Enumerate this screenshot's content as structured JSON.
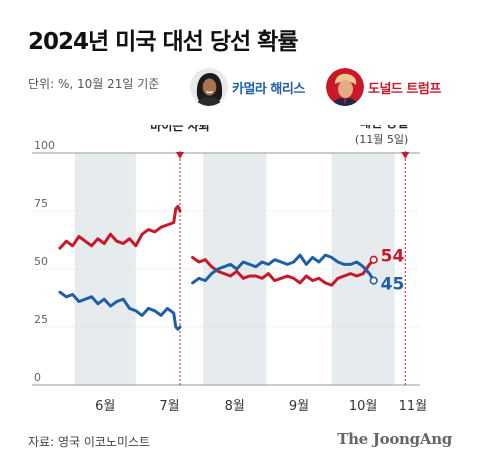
{
  "header": {
    "title": "2024년 미국 대선 당선 확률",
    "unit": "단위: %, 10월 21일 기준"
  },
  "legend": {
    "harris": {
      "label": "카멀라 해리스",
      "color": "#1f5fa8",
      "icon": "harris-portrait-icon"
    },
    "trump": {
      "label": "도널드 트럼프",
      "color": "#c8182a",
      "icon": "trump-portrait-icon"
    }
  },
  "footer": {
    "source": "자료: 영국 이코노미스트",
    "brand": "The JoongAng"
  },
  "colors": {
    "shade": "#e6ebee",
    "grid": "#cfcfcf",
    "event": "#c8182a"
  },
  "chart_data": {
    "type": "line",
    "title": "2024년 미국 대선 당선 확률",
    "ylim": [
      0,
      100
    ],
    "yticks": [
      0,
      25,
      50,
      75,
      100
    ],
    "month_labels": [
      "6월",
      "7월",
      "8월",
      "9월",
      "10월",
      "11월"
    ],
    "shaded_months": [
      "6월",
      "8월",
      "10월"
    ],
    "grid": false,
    "x_domain": [
      "2024-05-25",
      "2024-11-12"
    ],
    "annotations": [
      {
        "date": "2024-07-21",
        "label": "바이든 사퇴",
        "sublabel": ""
      },
      {
        "date": "2024-11-05",
        "label": "대선 당일",
        "sublabel": "(11월 5일)"
      }
    ],
    "end_labels": {
      "trump": "54",
      "harris": "45"
    },
    "series": [
      {
        "name": "도널드 트럼프",
        "key": "trump",
        "segments": [
          {
            "x": [
              "2024-05-25",
              "2024-05-28",
              "2024-05-31",
              "2024-06-03",
              "2024-06-06",
              "2024-06-09",
              "2024-06-12",
              "2024-06-15",
              "2024-06-18",
              "2024-06-21",
              "2024-06-24",
              "2024-06-27",
              "2024-06-30",
              "2024-07-03",
              "2024-07-06",
              "2024-07-09",
              "2024-07-12",
              "2024-07-15",
              "2024-07-18",
              "2024-07-19",
              "2024-07-20",
              "2024-07-21"
            ],
            "y": [
              59,
              62,
              60,
              64,
              62,
              60,
              63,
              61,
              65,
              62,
              61,
              63,
              60,
              65,
              67,
              66,
              68,
              69,
              70,
              76,
              77,
              75
            ]
          },
          {
            "x": [
              "2024-07-27",
              "2024-07-30",
              "2024-08-02",
              "2024-08-05",
              "2024-08-08",
              "2024-08-11",
              "2024-08-14",
              "2024-08-17",
              "2024-08-20",
              "2024-08-23",
              "2024-08-26",
              "2024-08-29",
              "2024-09-01",
              "2024-09-04",
              "2024-09-07",
              "2024-09-10",
              "2024-09-13",
              "2024-09-16",
              "2024-09-19",
              "2024-09-22",
              "2024-09-25",
              "2024-09-28",
              "2024-10-01",
              "2024-10-04",
              "2024-10-07",
              "2024-10-10",
              "2024-10-13",
              "2024-10-16",
              "2024-10-19",
              "2024-10-21"
            ],
            "y": [
              55,
              53,
              54,
              51,
              49,
              48,
              47,
              49,
              46,
              47,
              47,
              46,
              48,
              45,
              46,
              47,
              46,
              44,
              47,
              45,
              46,
              44,
              43,
              46,
              47,
              48,
              47,
              48,
              52,
              54
            ]
          }
        ]
      },
      {
        "name": "카멀라 해리스",
        "key": "harris",
        "segments": [
          {
            "x": [
              "2024-05-25",
              "2024-05-28",
              "2024-05-31",
              "2024-06-03",
              "2024-06-06",
              "2024-06-09",
              "2024-06-12",
              "2024-06-15",
              "2024-06-18",
              "2024-06-21",
              "2024-06-24",
              "2024-06-27",
              "2024-06-30",
              "2024-07-03",
              "2024-07-06",
              "2024-07-09",
              "2024-07-12",
              "2024-07-15",
              "2024-07-18",
              "2024-07-19",
              "2024-07-20",
              "2024-07-21"
            ],
            "y": [
              40,
              38,
              39,
              36,
              37,
              38,
              35,
              37,
              34,
              36,
              37,
              33,
              32,
              30,
              33,
              32,
              30,
              33,
              31,
              25,
              24,
              25
            ]
          },
          {
            "x": [
              "2024-07-27",
              "2024-07-30",
              "2024-08-02",
              "2024-08-05",
              "2024-08-08",
              "2024-08-11",
              "2024-08-14",
              "2024-08-17",
              "2024-08-20",
              "2024-08-23",
              "2024-08-26",
              "2024-08-29",
              "2024-09-01",
              "2024-09-04",
              "2024-09-07",
              "2024-09-10",
              "2024-09-13",
              "2024-09-16",
              "2024-09-19",
              "2024-09-22",
              "2024-09-25",
              "2024-09-28",
              "2024-10-01",
              "2024-10-04",
              "2024-10-07",
              "2024-10-10",
              "2024-10-13",
              "2024-10-16",
              "2024-10-19",
              "2024-10-21"
            ],
            "y": [
              44,
              46,
              45,
              48,
              50,
              51,
              52,
              50,
              53,
              52,
              51,
              53,
              52,
              54,
              53,
              52,
              53,
              56,
              52,
              55,
              53,
              56,
              55,
              53,
              52,
              52,
              53,
              51,
              48,
              45
            ]
          }
        ]
      }
    ]
  }
}
